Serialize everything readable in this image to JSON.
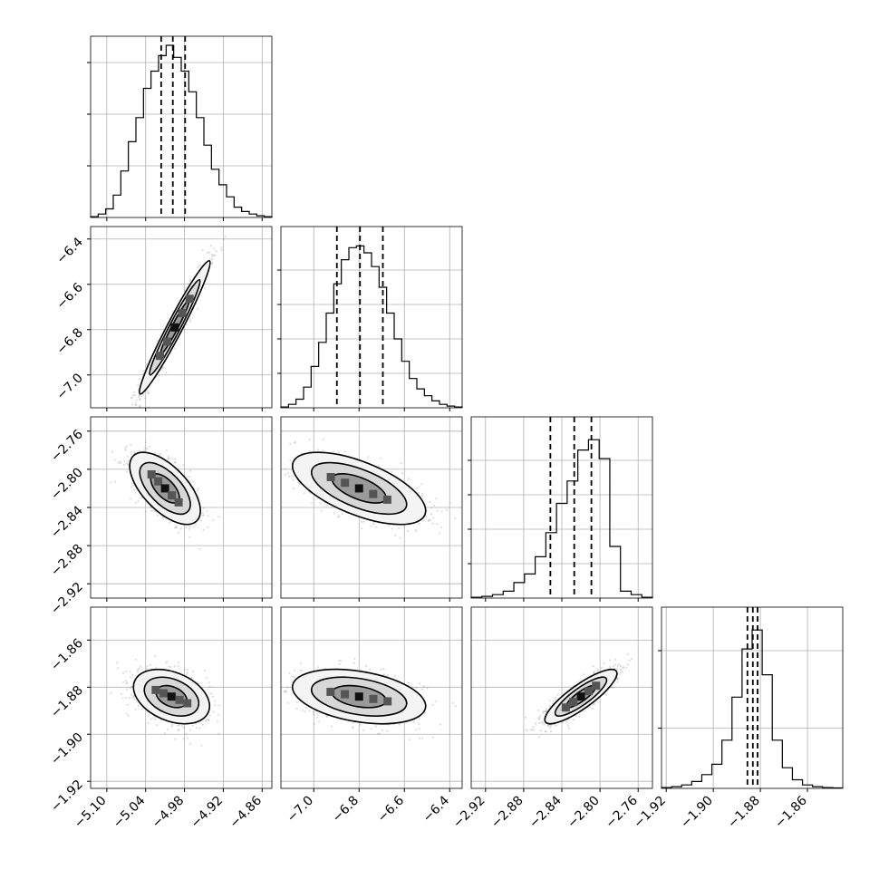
{
  "chart_data": {
    "type": "corner",
    "grid": true,
    "parameters": [
      {
        "ticks": [
          -5.1,
          -5.04,
          -4.98,
          -4.92,
          -4.86
        ],
        "tick_labels": [
          "−5.10",
          "−5.04",
          "−4.98",
          "−4.92",
          "−4.86"
        ],
        "range": [
          -5.125,
          -4.845
        ],
        "quantiles": [
          -5.016,
          -4.998,
          -4.979
        ]
      },
      {
        "ticks": [
          -7.0,
          -6.8,
          -6.6,
          -6.4
        ],
        "tick_labels": [
          "−7.0",
          "−6.8",
          "−6.6",
          "−6.4"
        ],
        "range": [
          -7.145,
          -6.345
        ],
        "quantiles": [
          -6.898,
          -6.796,
          -6.695
        ]
      },
      {
        "ticks": [
          -2.92,
          -2.88,
          -2.84,
          -2.8,
          -2.76
        ],
        "tick_labels": [
          "−2.92",
          "−2.88",
          "−2.84",
          "−2.80",
          "−2.76"
        ],
        "range": [
          -2.935,
          -2.745
        ],
        "quantiles": [
          -2.852,
          -2.827,
          -2.809
        ]
      },
      {
        "ticks": [
          -1.92,
          -1.9,
          -1.88,
          -1.86
        ],
        "tick_labels": [
          "−1.92",
          "−1.90",
          "−1.88",
          "−1.86"
        ],
        "range": [
          -1.922,
          -1.845
        ],
        "quantiles": [
          -1.8855,
          -1.8832,
          -1.8812
        ]
      }
    ],
    "y_ticks": {
      "1": {
        "ticks": [
          -7.0,
          -6.8,
          -6.6,
          -6.4
        ],
        "tick_labels": [
          "−7.0",
          "−6.8",
          "−6.6",
          "−6.4"
        ],
        "range": [
          -7.145,
          -6.345
        ]
      },
      "2": {
        "ticks": [
          -2.92,
          -2.88,
          -2.84,
          -2.8,
          -2.76
        ],
        "tick_labels": [
          "−2.92",
          "−2.88",
          "−2.84",
          "−2.80",
          "−2.76"
        ],
        "range": [
          -2.935,
          -2.745
        ]
      },
      "3": {
        "ticks": [
          -1.92,
          -1.9,
          -1.88,
          -1.86
        ],
        "tick_labels": [
          "−1.92",
          "−1.90",
          "−1.88",
          "−1.86"
        ],
        "range": [
          -1.923,
          -1.846
        ]
      }
    },
    "histograms": [
      {
        "counts": [
          0.005,
          0.02,
          0.05,
          0.13,
          0.27,
          0.44,
          0.58,
          0.75,
          0.85,
          0.94,
          1.0,
          0.93,
          0.85,
          0.73,
          0.58,
          0.42,
          0.28,
          0.19,
          0.12,
          0.06,
          0.035,
          0.02,
          0.01,
          0.005
        ],
        "max_count_ticks": [
          0.3,
          0.6,
          0.9
        ]
      },
      {
        "counts": [
          0.005,
          0.02,
          0.05,
          0.12,
          0.24,
          0.38,
          0.55,
          0.72,
          0.86,
          0.93,
          0.94,
          0.9,
          0.82,
          0.7,
          0.55,
          0.4,
          0.27,
          0.17,
          0.11,
          0.07,
          0.04,
          0.02,
          0.01,
          0.005
        ],
        "max_count_ticks": [
          0.2,
          0.4,
          0.6,
          0.8
        ]
      },
      {
        "counts": [
          0.005,
          0.01,
          0.02,
          0.04,
          0.09,
          0.14,
          0.24,
          0.38,
          0.55,
          0.68,
          0.86,
          0.92,
          0.81,
          0.3,
          0.04,
          0.02,
          0.005
        ],
        "max_count_ticks": [
          0.2,
          0.4,
          0.6,
          0.8
        ]
      },
      {
        "counts": [
          0.005,
          0.01,
          0.02,
          0.04,
          0.08,
          0.14,
          0.28,
          0.53,
          0.81,
          0.92,
          0.66,
          0.28,
          0.12,
          0.05,
          0.02,
          0.01,
          0.005,
          0.003
        ],
        "max_count_ticks": [
          0.35,
          0.8
        ]
      }
    ],
    "pairs": [
      {
        "x": 0,
        "y": 1,
        "center": [
          -4.995,
          -6.79
        ],
        "sx": 0.026,
        "sy": 0.14,
        "rho": 0.97
      },
      {
        "x": 0,
        "y": 2,
        "center": [
          -5.01,
          -2.82
        ],
        "sx": 0.026,
        "sy": 0.018,
        "rho": -0.62
      },
      {
        "x": 1,
        "y": 2,
        "center": [
          -6.8,
          -2.82
        ],
        "sx": 0.14,
        "sy": 0.018,
        "rho": -0.62
      },
      {
        "x": 0,
        "y": 3,
        "center": [
          -5.0,
          -1.884
        ],
        "sx": 0.028,
        "sy": 0.0055,
        "rho": -0.35
      },
      {
        "x": 1,
        "y": 3,
        "center": [
          -6.8,
          -1.884
        ],
        "sx": 0.14,
        "sy": 0.0055,
        "rho": -0.35
      },
      {
        "x": 2,
        "y": 3,
        "center": [
          -2.82,
          -1.884
        ],
        "sx": 0.018,
        "sy": 0.0055,
        "rho": 0.85
      }
    ]
  }
}
